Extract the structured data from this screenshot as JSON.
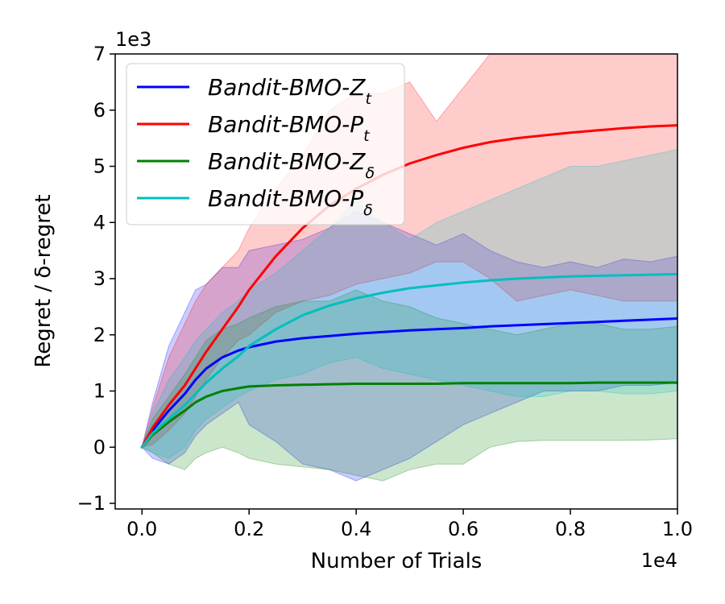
{
  "chart_data": {
    "type": "line",
    "title": "",
    "xlabel": "Number of Trials",
    "ylabel": "Regret / δ-regret",
    "x_offset_label": "1e4",
    "y_offset_label": "1e3",
    "xlim": [
      -0.05,
      1.0
    ],
    "ylim": [
      -1.1,
      7.0
    ],
    "xticks": [
      0.0,
      0.2,
      0.4,
      0.6,
      0.8,
      1.0
    ],
    "xtick_labels": [
      "0.0",
      "0.2",
      "0.4",
      "0.6",
      "0.8",
      "1.0"
    ],
    "yticks": [
      -1,
      0,
      1,
      2,
      3,
      4,
      5,
      6,
      7
    ],
    "ytick_labels": [
      "−1",
      "0",
      "1",
      "2",
      "3",
      "4",
      "5",
      "6",
      "7"
    ],
    "legend_position": "top-left",
    "x": [
      0.0,
      0.02,
      0.05,
      0.08,
      0.1,
      0.12,
      0.15,
      0.18,
      0.2,
      0.25,
      0.3,
      0.35,
      0.4,
      0.45,
      0.5,
      0.55,
      0.6,
      0.65,
      0.7,
      0.75,
      0.8,
      0.85,
      0.9,
      0.95,
      1.0
    ],
    "series": [
      {
        "name": "Bandit-BMO-Z",
        "subscript": "t",
        "color": "#0000ff",
        "values": [
          0.0,
          0.3,
          0.65,
          0.95,
          1.2,
          1.4,
          1.6,
          1.72,
          1.78,
          1.88,
          1.94,
          1.98,
          2.02,
          2.05,
          2.08,
          2.1,
          2.12,
          2.15,
          2.17,
          2.19,
          2.21,
          2.23,
          2.25,
          2.27,
          2.29
        ],
        "upper": [
          0.0,
          0.8,
          1.8,
          2.4,
          2.8,
          2.9,
          3.2,
          3.2,
          3.5,
          3.6,
          3.7,
          3.9,
          4.2,
          4.0,
          3.8,
          3.6,
          3.8,
          3.5,
          3.3,
          3.2,
          3.3,
          3.2,
          3.35,
          3.3,
          3.4
        ],
        "lower": [
          0.0,
          -0.2,
          -0.3,
          -0.1,
          0.2,
          0.4,
          0.6,
          0.8,
          0.4,
          0.1,
          -0.3,
          -0.4,
          -0.6,
          -0.4,
          -0.2,
          0.1,
          0.4,
          0.6,
          0.8,
          1.0,
          1.0,
          1.0,
          1.1,
          1.1,
          1.15
        ]
      },
      {
        "name": "Bandit-BMO-P",
        "subscript": "t",
        "color": "#ff0000",
        "values": [
          0.0,
          0.35,
          0.75,
          1.1,
          1.4,
          1.7,
          2.1,
          2.5,
          2.8,
          3.4,
          3.9,
          4.3,
          4.6,
          4.85,
          5.05,
          5.2,
          5.33,
          5.43,
          5.5,
          5.55,
          5.6,
          5.64,
          5.68,
          5.71,
          5.73
        ],
        "upper": [
          0.0,
          0.7,
          1.6,
          2.2,
          2.6,
          2.9,
          3.2,
          3.5,
          3.9,
          4.6,
          5.2,
          6.0,
          6.3,
          6.3,
          6.5,
          5.8,
          6.4,
          7.0,
          7.0,
          7.0,
          7.0,
          7.0,
          7.0,
          7.0,
          7.0
        ],
        "lower": [
          0.0,
          0.05,
          0.3,
          0.6,
          0.9,
          1.2,
          1.6,
          1.9,
          2.0,
          2.4,
          2.6,
          2.7,
          2.9,
          3.0,
          3.1,
          3.3,
          3.3,
          3.0,
          2.6,
          2.7,
          2.8,
          2.7,
          2.6,
          2.6,
          2.6
        ]
      },
      {
        "name": "Bandit-BMO-Z",
        "subscript": "δ",
        "color": "#008000",
        "values": [
          0.0,
          0.22,
          0.45,
          0.65,
          0.8,
          0.9,
          1.0,
          1.05,
          1.08,
          1.1,
          1.11,
          1.12,
          1.13,
          1.13,
          1.13,
          1.13,
          1.14,
          1.14,
          1.14,
          1.14,
          1.14,
          1.15,
          1.15,
          1.15,
          1.15
        ],
        "upper": [
          0.0,
          0.5,
          0.9,
          1.3,
          1.6,
          1.9,
          2.1,
          2.2,
          2.3,
          2.5,
          2.6,
          2.6,
          2.8,
          2.6,
          2.5,
          2.3,
          2.2,
          2.1,
          2.0,
          2.1,
          2.2,
          2.2,
          2.1,
          2.1,
          2.15
        ],
        "lower": [
          0.0,
          -0.1,
          -0.3,
          -0.4,
          -0.2,
          -0.1,
          0.0,
          -0.1,
          -0.2,
          -0.3,
          -0.35,
          -0.4,
          -0.5,
          -0.6,
          -0.4,
          -0.3,
          -0.3,
          0.0,
          0.1,
          0.12,
          0.12,
          0.12,
          0.12,
          0.13,
          0.15
        ]
      },
      {
        "name": "Bandit-BMO-P",
        "subscript": "δ",
        "color": "#00bfbf",
        "values": [
          0.0,
          0.25,
          0.5,
          0.75,
          0.95,
          1.15,
          1.4,
          1.62,
          1.8,
          2.1,
          2.35,
          2.52,
          2.65,
          2.75,
          2.83,
          2.88,
          2.93,
          2.97,
          3.0,
          3.02,
          3.04,
          3.05,
          3.06,
          3.07,
          3.08
        ],
        "upper": [
          0.0,
          0.6,
          1.2,
          1.6,
          1.9,
          2.1,
          2.4,
          2.6,
          2.8,
          3.1,
          3.5,
          3.9,
          4.4,
          4.0,
          3.7,
          4.0,
          4.2,
          4.4,
          4.6,
          4.8,
          5.0,
          5.0,
          5.1,
          5.2,
          5.3
        ],
        "lower": [
          0.0,
          -0.1,
          -0.2,
          0.0,
          0.3,
          0.5,
          0.7,
          0.9,
          1.0,
          1.2,
          1.3,
          1.5,
          1.6,
          1.4,
          1.3,
          1.2,
          1.1,
          1.0,
          0.9,
          0.9,
          1.0,
          1.0,
          0.95,
          0.95,
          1.0
        ]
      }
    ]
  }
}
